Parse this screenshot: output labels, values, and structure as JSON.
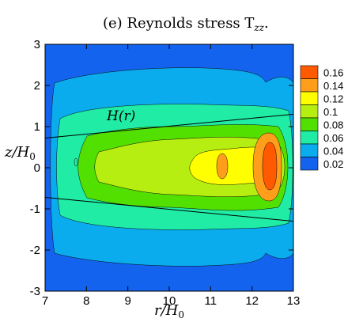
{
  "chart_data": {
    "type": "heatmap",
    "title": "(e) Reynolds stress T",
    "title_sub": "zz",
    "xlabel": "r/H",
    "xlabel_sub": "0",
    "ylabel": "z/H",
    "ylabel_sub": "0",
    "xlim": [
      7,
      13
    ],
    "ylim": [
      -3,
      3
    ],
    "x_ticks": [
      "7",
      "8",
      "9",
      "10",
      "11",
      "12",
      "13"
    ],
    "y_ticks": [
      "3",
      "2",
      "1",
      "0",
      "-1",
      "-2",
      "-3"
    ],
    "legend_position": "right",
    "legend_levels": [
      "0.16",
      "0.14",
      "0.12",
      "0.1",
      "0.08",
      "0.06",
      "0.04",
      "0.02"
    ],
    "level_colors": [
      "#ff5a00",
      "#ff9e1a",
      "#ffff00",
      "#b5ee10",
      "#52e000",
      "#20eca6",
      "#0aacee",
      "#1463ee"
    ],
    "annotation": "H(r)",
    "scale_height_lines": [
      {
        "x": [
          7,
          13
        ],
        "y": [
          0.72,
          1.3
        ]
      },
      {
        "x": [
          7,
          13
        ],
        "y": [
          -0.72,
          -1.3
        ]
      }
    ],
    "contours": [
      {
        "level": "0.04",
        "x": [
          7.2,
          7.8,
          8.5,
          9.5,
          10.5,
          11.5,
          12.0,
          12.5,
          13.0,
          13.0
        ],
        "y_half": [
          2.25,
          2.4,
          2.45,
          2.5,
          2.5,
          2.5,
          2.55,
          2.75,
          2.7,
          2.7
        ]
      },
      {
        "level": "0.06",
        "x": [
          7.5,
          8.0,
          9.0,
          10.0,
          11.0,
          12.0,
          12.5,
          13.0
        ],
        "y_half": [
          1.55,
          1.75,
          1.9,
          1.9,
          1.9,
          1.9,
          2.0,
          2.0
        ]
      },
      {
        "level": "0.08",
        "x": [
          8.0,
          9.0,
          10.0,
          11.0,
          12.0,
          12.5,
          13.0
        ],
        "y_half": [
          1.0,
          1.3,
          1.45,
          1.5,
          1.55,
          1.6,
          1.55
        ]
      },
      {
        "level": "0.1",
        "x": [
          8.4,
          9.5,
          10.5,
          11.5,
          12.5,
          12.9
        ],
        "y_half": [
          0.4,
          0.7,
          0.9,
          1.1,
          1.25,
          1.1
        ]
      },
      {
        "level": "0.12",
        "x": [
          10.8,
          11.5,
          12.2,
          12.7
        ],
        "y_half": [
          0.3,
          0.55,
          0.75,
          0.8
        ]
      },
      {
        "level": "0.14",
        "x": [
          11.9,
          12.3,
          12.7
        ],
        "y_half": [
          0.6,
          0.85,
          0.6
        ]
      },
      {
        "level": "0.16",
        "x": [
          12.3,
          12.5,
          12.7
        ],
        "y_half": [
          0.45,
          0.6,
          0.45
        ]
      }
    ]
  }
}
